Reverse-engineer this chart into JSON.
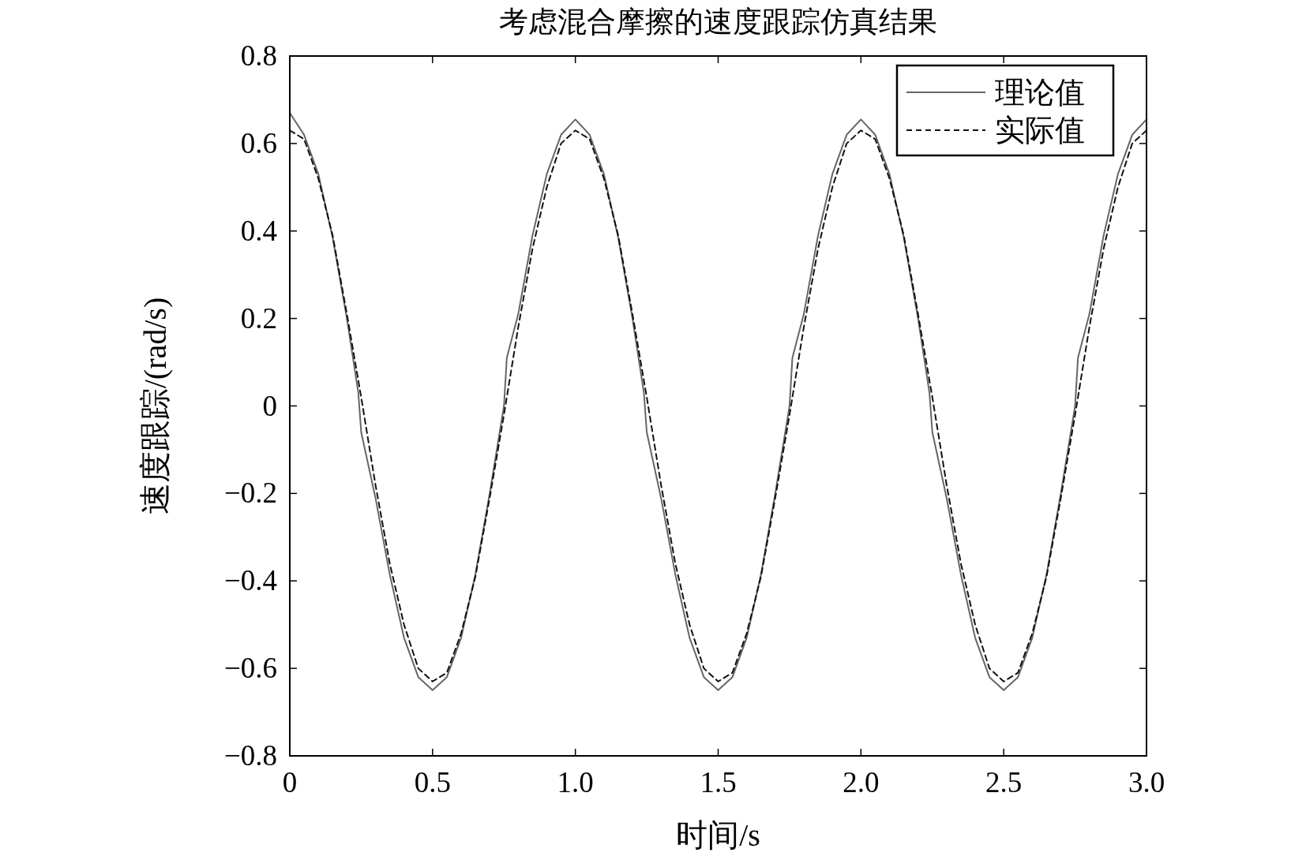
{
  "chart_data": {
    "type": "line",
    "title": "考虑混合摩擦的速度跟踪仿真结果",
    "xlabel": "时间/s",
    "ylabel": "速度跟踪/(rad/s)",
    "xlim": [
      0,
      3
    ],
    "ylim": [
      -0.8,
      0.8
    ],
    "xticks": [
      0,
      {
        "value": 0.5,
        "label": "0.5"
      },
      {
        "value": 1,
        "label": "1.0"
      },
      {
        "value": 1.5,
        "label": "1.5"
      },
      {
        "value": 2,
        "label": "2.0"
      },
      {
        "value": 2.5,
        "label": "2.5"
      },
      {
        "value": 3,
        "label": "3.0"
      }
    ],
    "yticks": [
      {
        "value": -0.8,
        "label": "−0.8"
      },
      {
        "value": -0.6,
        "label": "−0.6"
      },
      {
        "value": -0.4,
        "label": "−0.4"
      },
      {
        "value": -0.2,
        "label": "−0.2"
      },
      0,
      0.2,
      0.4,
      0.6,
      0.8
    ],
    "legend": "top right",
    "series": [
      {
        "name": "理论值",
        "color": "#666666",
        "line_style": "solid",
        "x": [
          0,
          0.05,
          0.1,
          0.15,
          0.2,
          0.24,
          0.25,
          0.3,
          0.35,
          0.4,
          0.45,
          0.5,
          0.55,
          0.6,
          0.65,
          0.7,
          0.75,
          0.76,
          0.8,
          0.85,
          0.9,
          0.95,
          1.0,
          1.05,
          1.1,
          1.15,
          1.2,
          1.24,
          1.25,
          1.3,
          1.35,
          1.4,
          1.45,
          1.5,
          1.55,
          1.6,
          1.65,
          1.7,
          1.75,
          1.76,
          1.8,
          1.85,
          1.9,
          1.95,
          2.0,
          2.05,
          2.1,
          2.15,
          2.2,
          2.24,
          2.25,
          2.3,
          2.35,
          2.4,
          2.45,
          2.5,
          2.55,
          2.6,
          2.65,
          2.7,
          2.75,
          2.76,
          2.8,
          2.85,
          2.9,
          2.95,
          3.0
        ],
        "values": [
          0.67,
          0.62,
          0.53,
          0.385,
          0.2,
          0.03,
          -0.06,
          -0.21,
          -0.385,
          -0.53,
          -0.62,
          -0.65,
          -0.62,
          -0.53,
          -0.385,
          -0.2,
          0.0,
          0.11,
          0.21,
          0.39,
          0.53,
          0.62,
          0.655,
          0.62,
          0.53,
          0.385,
          0.2,
          0.03,
          -0.06,
          -0.21,
          -0.385,
          -0.53,
          -0.62,
          -0.65,
          -0.62,
          -0.53,
          -0.385,
          -0.2,
          0.0,
          0.11,
          0.21,
          0.39,
          0.53,
          0.62,
          0.655,
          0.62,
          0.53,
          0.385,
          0.2,
          0.03,
          -0.06,
          -0.21,
          -0.385,
          -0.53,
          -0.62,
          -0.65,
          -0.62,
          -0.53,
          -0.385,
          -0.2,
          0.0,
          0.11,
          0.21,
          0.39,
          0.53,
          0.62,
          0.655
        ]
      },
      {
        "name": "实际值",
        "color": "#111111",
        "line_style": "dashed",
        "x": [
          0,
          0.05,
          0.1,
          0.15,
          0.2,
          0.25,
          0.3,
          0.35,
          0.4,
          0.45,
          0.5,
          0.55,
          0.6,
          0.65,
          0.7,
          0.75,
          0.8,
          0.85,
          0.9,
          0.95,
          1.0,
          1.05,
          1.1,
          1.15,
          1.2,
          1.25,
          1.3,
          1.35,
          1.4,
          1.45,
          1.5,
          1.55,
          1.6,
          1.65,
          1.7,
          1.75,
          1.8,
          1.85,
          1.9,
          1.95,
          2.0,
          2.05,
          2.1,
          2.15,
          2.2,
          2.25,
          2.3,
          2.35,
          2.4,
          2.45,
          2.5,
          2.55,
          2.6,
          2.65,
          2.7,
          2.75,
          2.8,
          2.85,
          2.9,
          2.95,
          3.0
        ],
        "values": [
          0.63,
          0.61,
          0.52,
          0.39,
          0.21,
          0.02,
          -0.18,
          -0.36,
          -0.5,
          -0.6,
          -0.63,
          -0.61,
          -0.52,
          -0.39,
          -0.21,
          -0.02,
          0.18,
          0.36,
          0.5,
          0.6,
          0.63,
          0.61,
          0.52,
          0.39,
          0.21,
          0.02,
          -0.18,
          -0.36,
          -0.5,
          -0.6,
          -0.63,
          -0.61,
          -0.52,
          -0.39,
          -0.21,
          -0.02,
          0.18,
          0.36,
          0.5,
          0.6,
          0.63,
          0.61,
          0.52,
          0.39,
          0.21,
          0.02,
          -0.18,
          -0.36,
          -0.5,
          -0.6,
          -0.63,
          -0.61,
          -0.52,
          -0.39,
          -0.21,
          -0.02,
          0.18,
          0.36,
          0.5,
          0.6,
          0.63
        ]
      }
    ]
  }
}
